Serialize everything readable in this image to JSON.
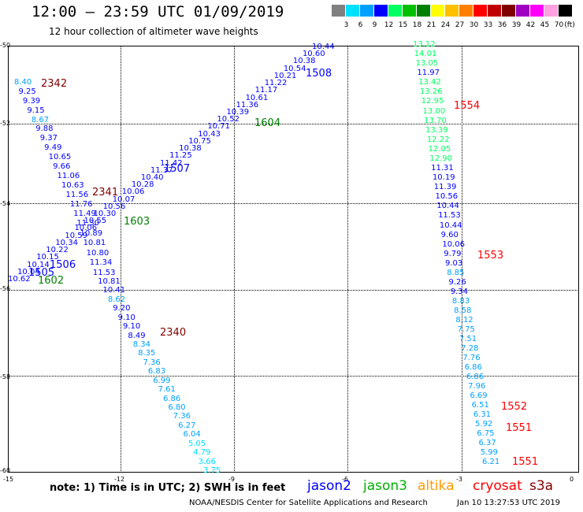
{
  "header": {
    "title": "12:00 – 23:59 UTC 01/09/2019",
    "subtitle": "12 hour collection of altimeter wave heights"
  },
  "scale": {
    "unit": "(ft)",
    "bins": [
      {
        "label": "3",
        "color": "#808080"
      },
      {
        "label": "6",
        "color": "#00e0ff"
      },
      {
        "label": "9",
        "color": "#00a0ff"
      },
      {
        "label": "12",
        "color": "#0000ff"
      },
      {
        "label": "15",
        "color": "#00ff60"
      },
      {
        "label": "18",
        "color": "#00c000"
      },
      {
        "label": "21",
        "color": "#008000"
      },
      {
        "label": "24",
        "color": "#ffff00"
      },
      {
        "label": "27",
        "color": "#ffc000"
      },
      {
        "label": "30",
        "color": "#ff8000"
      },
      {
        "label": "33",
        "color": "#ff0000"
      },
      {
        "label": "36",
        "color": "#c00000"
      },
      {
        "label": "39",
        "color": "#800000"
      },
      {
        "label": "42",
        "color": "#a000c0"
      },
      {
        "label": "45",
        "color": "#ff00ff"
      },
      {
        "label": "70",
        "color": "#ffa0e0"
      },
      {
        "label": "",
        "color": "#000000"
      }
    ]
  },
  "map": {
    "lat_ticks": [
      "-50",
      "-52",
      "-54",
      "-56",
      "-58",
      "-60"
    ],
    "lon_ticks": [
      "-15",
      "-12",
      "-9",
      "-6",
      "-3",
      "0"
    ],
    "pass_labels": [
      {
        "text": "2342",
        "color": "#800000"
      },
      {
        "text": "2341",
        "color": "#800000"
      },
      {
        "text": "2340",
        "color": "#800000"
      },
      {
        "text": "1508",
        "color": "#0000ff"
      },
      {
        "text": "1507",
        "color": "#0000ff"
      },
      {
        "text": "1506",
        "color": "#0000ff"
      },
      {
        "text": "1505",
        "color": "#0000ff"
      },
      {
        "text": "1604",
        "color": "#008000"
      },
      {
        "text": "1603",
        "color": "#008000"
      },
      {
        "text": "1602",
        "color": "#008000"
      },
      {
        "text": "1554",
        "color": "#ff0000"
      },
      {
        "text": "1553",
        "color": "#ff0000"
      },
      {
        "text": "1552",
        "color": "#ff0000"
      },
      {
        "text": "1551",
        "color": "#ff0000"
      },
      {
        "text": "1551",
        "color": "#ff0000"
      }
    ],
    "track_2340_2342": {
      "values": [
        "8.40",
        "9.25",
        "9.39",
        "9.15",
        "8.67",
        "9.88",
        "9.37",
        "9.49",
        "10.65",
        "9.66",
        "11.06",
        "10.63",
        "11.56",
        "11.76",
        "11.49",
        "11.30",
        "10.89",
        "10.81",
        "10.80",
        "11.34",
        "11.53",
        "10.81",
        "10.41",
        "8.62",
        "9.20",
        "9.10",
        "9.10",
        "8.49",
        "8.34",
        "8.35",
        "7.36",
        "6.83",
        "6.99",
        "7.61",
        "6.86",
        "6.80",
        "7.36",
        "6.27",
        "6.04",
        "5.05",
        "4.79",
        "3.66",
        "3.75"
      ],
      "colors": [
        "#00a0ff",
        "#0000ff",
        "#0000ff",
        "#0000ff",
        "#00a0ff",
        "#0000ff",
        "#0000ff",
        "#0000ff",
        "#0000ff",
        "#0000ff",
        "#0000ff",
        "#0000ff",
        "#0000ff",
        "#0000ff",
        "#0000ff",
        "#0000ff",
        "#0000ff",
        "#0000ff",
        "#0000ff",
        "#0000ff",
        "#0000ff",
        "#0000ff",
        "#0000ff",
        "#00a0ff",
        "#0000ff",
        "#0000ff",
        "#0000ff",
        "#0000ff",
        "#00a0ff",
        "#00a0ff",
        "#00a0ff",
        "#00a0ff",
        "#00a0ff",
        "#00a0ff",
        "#00a0ff",
        "#00a0ff",
        "#00a0ff",
        "#00a0ff",
        "#00a0ff",
        "#00e0ff",
        "#00e0ff",
        "#00e0ff",
        "#00e0ff"
      ]
    },
    "track_1505_1508": {
      "values": [
        "10.44",
        "10.60",
        "10.38",
        "10.54",
        "10.21",
        "11.22",
        "11.17",
        "10.61",
        "11.36",
        "10.39",
        "10.52",
        "10.71",
        "10.43",
        "10.75",
        "10.38",
        "11.25",
        "11.42",
        "11.37",
        "10.40",
        "10.28",
        "10.06",
        "10.07",
        "10.56",
        "10.30",
        "10.55",
        "10.06",
        "10.59",
        "10.34",
        "10.22",
        "10.15",
        "10.14",
        "10.04",
        "10.62"
      ],
      "colors": [
        "#0000ff",
        "#0000ff",
        "#0000ff",
        "#0000ff",
        "#0000ff",
        "#0000ff",
        "#0000ff",
        "#0000ff",
        "#0000ff",
        "#0000ff",
        "#0000ff",
        "#0000ff",
        "#0000ff",
        "#0000ff",
        "#0000ff",
        "#0000ff",
        "#0000ff",
        "#0000ff",
        "#0000ff",
        "#0000ff",
        "#0000ff",
        "#0000ff",
        "#0000ff",
        "#0000ff",
        "#0000ff",
        "#0000ff",
        "#0000ff",
        "#0000ff",
        "#0000ff",
        "#0000ff",
        "#0000ff",
        "#0000ff",
        "#0000ff"
      ]
    },
    "track_1551_1554": {
      "values": [
        "13.12",
        "14.01",
        "13.05",
        "11.97",
        "13.42",
        "13.26",
        "12.95",
        "13.00",
        "13.70",
        "13.39",
        "12.22",
        "12.05",
        "12.90",
        "11.31",
        "10.19",
        "11.39",
        "10.56",
        "10.44",
        "11.53",
        "10.44",
        "9.60",
        "10.06",
        "9.79",
        "9.03",
        "8.85",
        "9.26",
        "9.34",
        "8.83",
        "8.58",
        "8.12",
        "7.75",
        "7.51",
        "7.28",
        "7.76",
        "6.86",
        "6.86",
        "7.96",
        "6.69",
        "6.51",
        "6.31",
        "5.92",
        "6.75",
        "6.37",
        "5.99",
        "6.21"
      ],
      "colors": [
        "#00ff60",
        "#00ff60",
        "#00ff60",
        "#0000ff",
        "#00ff60",
        "#00ff60",
        "#00ff60",
        "#00ff60",
        "#00ff60",
        "#00ff60",
        "#00ff60",
        "#00ff60",
        "#00ff60",
        "#0000ff",
        "#0000ff",
        "#0000ff",
        "#0000ff",
        "#0000ff",
        "#0000ff",
        "#0000ff",
        "#0000ff",
        "#0000ff",
        "#0000ff",
        "#0000ff",
        "#00a0ff",
        "#0000ff",
        "#0000ff",
        "#00a0ff",
        "#00a0ff",
        "#00a0ff",
        "#00a0ff",
        "#00a0ff",
        "#00a0ff",
        "#00a0ff",
        "#00a0ff",
        "#00a0ff",
        "#00a0ff",
        "#00a0ff",
        "#00a0ff",
        "#00a0ff",
        "#00a0ff",
        "#00a0ff",
        "#00a0ff",
        "#00a0ff",
        "#00a0ff"
      ]
    }
  },
  "footer": {
    "note": "note:  1) Time is in UTC;  2) SWH is in feet",
    "legend": [
      {
        "name": "jason2",
        "color": "#0000ff"
      },
      {
        "name": "jason3",
        "color": "#00b000"
      },
      {
        "name": "altika",
        "color": "#ff9900"
      },
      {
        "name": "cryosat",
        "color": "#ff0000"
      },
      {
        "name": "s3a",
        "color": "#800000"
      }
    ],
    "credit": "NOAA/NESDIS Center for Satellite Applications and Research",
    "timestamp": "Jan 10 13:27:53 UTC 2019"
  }
}
